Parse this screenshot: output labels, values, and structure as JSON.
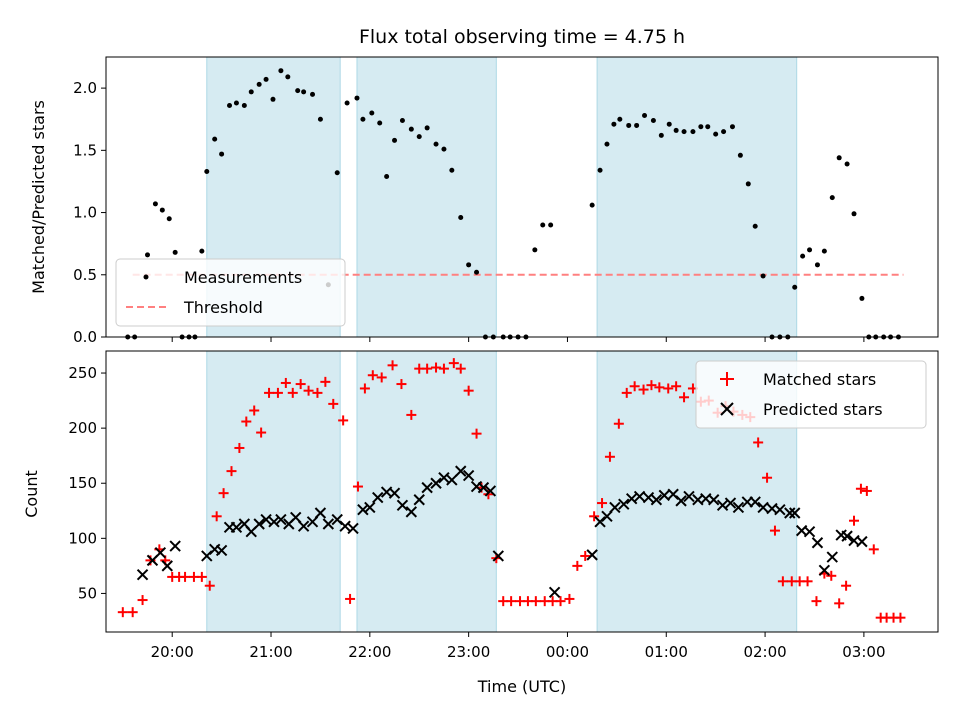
{
  "chart_data": [
    {
      "type": "scatter",
      "title": "Flux total observing time = 4.75 h",
      "xlabel": "",
      "ylabel": "Matched/Predicted stars",
      "xlim": [
        19.33,
        27.75
      ],
      "ylim": [
        0,
        2.25
      ],
      "yticks": [
        0.0,
        0.5,
        1.0,
        1.5,
        2.0
      ],
      "ytick_labels": [
        "0.0",
        "0.5",
        "1.0",
        "1.5",
        "2.0"
      ],
      "shaded_spans": [
        [
          20.35,
          21.7
        ],
        [
          21.87,
          23.28
        ],
        [
          24.3,
          26.32
        ]
      ],
      "legend": {
        "position": "lower-left",
        "entries": [
          "Measurements",
          "Threshold"
        ]
      },
      "threshold": {
        "name": "Threshold",
        "value": 0.5,
        "x_range": [
          19.6,
          27.4
        ],
        "color": "#ff8080"
      },
      "series": [
        {
          "name": "Measurements",
          "color": "#000000",
          "x": [
            19.55,
            19.62,
            19.75,
            19.83,
            19.9,
            19.97,
            20.03,
            20.1,
            20.17,
            20.23,
            20.3,
            20.35,
            20.43,
            20.5,
            20.58,
            20.65,
            20.73,
            20.8,
            20.88,
            20.95,
            21.02,
            21.1,
            21.17,
            21.27,
            21.33,
            21.42,
            21.5,
            21.58,
            21.67,
            21.77,
            21.87,
            21.93,
            22.02,
            22.1,
            22.17,
            22.25,
            22.33,
            22.42,
            22.5,
            22.58,
            22.67,
            22.75,
            22.83,
            22.92,
            23.0,
            23.08,
            23.17,
            23.25,
            23.35,
            23.42,
            23.5,
            23.58,
            23.67,
            23.75,
            23.83,
            24.25,
            24.33,
            24.4,
            24.47,
            24.53,
            24.62,
            24.7,
            24.78,
            24.87,
            24.95,
            25.03,
            25.1,
            25.18,
            25.27,
            25.35,
            25.42,
            25.5,
            25.58,
            25.67,
            25.75,
            25.83,
            25.9,
            25.98,
            26.07,
            26.15,
            26.23,
            26.3,
            26.38,
            26.45,
            26.53,
            26.6,
            26.68,
            26.75,
            26.83,
            26.9,
            26.98,
            27.05,
            27.12,
            27.2,
            27.27,
            27.35
          ],
          "y": [
            0.0,
            0.0,
            0.66,
            1.07,
            1.02,
            0.95,
            0.68,
            0.0,
            0.0,
            0.0,
            0.69,
            1.33,
            1.59,
            1.47,
            1.86,
            1.88,
            1.86,
            1.97,
            2.03,
            2.07,
            1.91,
            2.14,
            2.09,
            1.98,
            1.97,
            1.95,
            1.75,
            0.42,
            1.32,
            1.88,
            1.92,
            1.75,
            1.8,
            1.72,
            1.29,
            1.58,
            1.74,
            1.67,
            1.61,
            1.68,
            1.55,
            1.51,
            1.34,
            0.96,
            0.58,
            0.52,
            0.0,
            0.0,
            0.0,
            0.0,
            0.0,
            0.0,
            0.7,
            0.9,
            0.9,
            1.06,
            1.34,
            1.55,
            1.71,
            1.75,
            1.7,
            1.7,
            1.78,
            1.74,
            1.62,
            1.71,
            1.66,
            1.65,
            1.65,
            1.69,
            1.69,
            1.63,
            1.65,
            1.69,
            1.46,
            1.23,
            0.89,
            0.49,
            0.0,
            0.0,
            0.0,
            0.4,
            0.65,
            0.7,
            0.58,
            0.69,
            1.12,
            1.44,
            1.39,
            0.99,
            0.31,
            0.0,
            0.0,
            0.0,
            0.0,
            0.0
          ]
        }
      ]
    },
    {
      "type": "scatter",
      "title": "",
      "xlabel": "Time (UTC)",
      "ylabel": "Count",
      "xlim": [
        19.33,
        27.75
      ],
      "ylim": [
        15,
        270
      ],
      "yticks": [
        50,
        100,
        150,
        200,
        250
      ],
      "ytick_labels": [
        "50",
        "100",
        "150",
        "200",
        "250"
      ],
      "xticks": [
        20,
        21,
        22,
        23,
        24,
        25,
        26,
        27
      ],
      "xtick_labels": [
        "20:00",
        "21:00",
        "22:00",
        "23:00",
        "00:00",
        "01:00",
        "02:00",
        "03:00"
      ],
      "shaded_spans": [
        [
          20.35,
          21.7
        ],
        [
          21.87,
          23.28
        ],
        [
          24.3,
          26.32
        ]
      ],
      "legend": {
        "position": "top-right",
        "entries": [
          "Matched stars",
          "Predicted stars"
        ]
      },
      "series": [
        {
          "name": "Matched stars",
          "marker": "+",
          "color": "#ff0000",
          "x": [
            19.5,
            19.6,
            19.7,
            19.78,
            19.87,
            19.93,
            20.0,
            20.07,
            20.13,
            20.22,
            20.3,
            20.38,
            20.45,
            20.52,
            20.6,
            20.68,
            20.75,
            20.83,
            20.9,
            20.98,
            21.07,
            21.15,
            21.22,
            21.3,
            21.38,
            21.47,
            21.55,
            21.63,
            21.73,
            21.8,
            21.88,
            21.95,
            22.03,
            22.12,
            22.23,
            22.32,
            22.42,
            22.5,
            22.58,
            22.67,
            22.75,
            22.85,
            22.92,
            23.0,
            23.08,
            23.13,
            23.2,
            23.28,
            23.35,
            23.43,
            23.52,
            23.6,
            23.68,
            23.77,
            23.85,
            23.93,
            24.02,
            24.1,
            24.18,
            24.27,
            24.35,
            24.43,
            24.52,
            24.6,
            24.68,
            24.77,
            24.85,
            24.93,
            25.02,
            25.1,
            25.18,
            25.27,
            25.35,
            25.43,
            25.52,
            25.6,
            25.68,
            25.77,
            25.85,
            25.93,
            26.02,
            26.1,
            26.18,
            26.27,
            26.35,
            26.43,
            26.52,
            26.6,
            26.67,
            26.75,
            26.82,
            26.9,
            26.97,
            27.03,
            27.1,
            27.17,
            27.23,
            27.3,
            27.37
          ],
          "y": [
            33,
            33,
            44,
            80,
            90,
            80,
            65,
            65,
            65,
            65,
            65,
            57,
            120,
            141,
            161,
            182,
            206,
            216,
            196,
            232,
            232,
            241,
            232,
            240,
            234,
            232,
            242,
            222,
            207,
            45,
            147,
            236,
            248,
            246,
            257,
            240,
            212,
            254,
            254,
            255,
            254,
            259,
            254,
            234,
            195,
            146,
            140,
            82,
            43,
            43,
            43,
            43,
            43,
            43,
            43,
            43,
            45,
            75,
            84,
            120,
            132,
            174,
            204,
            232,
            238,
            235,
            239,
            237,
            236,
            238,
            228,
            236,
            224,
            225,
            214,
            220,
            215,
            212,
            210,
            187,
            155,
            107,
            61,
            61,
            61,
            61,
            43,
            68,
            66,
            41,
            57,
            116,
            145,
            143,
            90,
            28,
            28,
            28,
            28
          ]
        },
        {
          "name": "Predicted stars",
          "marker": "x",
          "color": "#000000",
          "x": [
            19.7,
            19.8,
            19.88,
            19.95,
            20.03,
            20.35,
            20.43,
            20.5,
            20.58,
            20.65,
            20.73,
            20.8,
            20.88,
            20.95,
            21.03,
            21.1,
            21.18,
            21.25,
            21.33,
            21.42,
            21.5,
            21.58,
            21.67,
            21.75,
            21.83,
            21.93,
            22.0,
            22.08,
            22.17,
            22.25,
            22.33,
            22.42,
            22.5,
            22.58,
            22.67,
            22.75,
            22.83,
            22.92,
            23.0,
            23.08,
            23.15,
            23.22,
            23.3,
            23.87,
            24.25,
            24.33,
            24.4,
            24.48,
            24.57,
            24.65,
            24.73,
            24.82,
            24.9,
            24.98,
            25.07,
            25.15,
            25.23,
            25.32,
            25.4,
            25.48,
            25.57,
            25.65,
            25.73,
            25.82,
            25.9,
            25.98,
            26.07,
            26.15,
            26.25,
            26.3,
            26.37,
            26.45,
            26.53,
            26.6,
            26.68,
            26.77,
            26.83,
            26.9,
            26.98
          ],
          "y": [
            67,
            80,
            87,
            75,
            93,
            84,
            90,
            89,
            110,
            110,
            113,
            106,
            113,
            117,
            115,
            117,
            113,
            119,
            111,
            115,
            123,
            113,
            117,
            111,
            109,
            126,
            128,
            137,
            142,
            141,
            130,
            124,
            135,
            146,
            150,
            155,
            153,
            161,
            157,
            147,
            146,
            143,
            84,
            51,
            85,
            115,
            120,
            128,
            131,
            136,
            138,
            137,
            135,
            139,
            140,
            134,
            138,
            135,
            136,
            135,
            130,
            132,
            128,
            133,
            133,
            128,
            127,
            126,
            123,
            123,
            107,
            106,
            96,
            71,
            83,
            103,
            102,
            98,
            97
          ]
        }
      ]
    }
  ]
}
